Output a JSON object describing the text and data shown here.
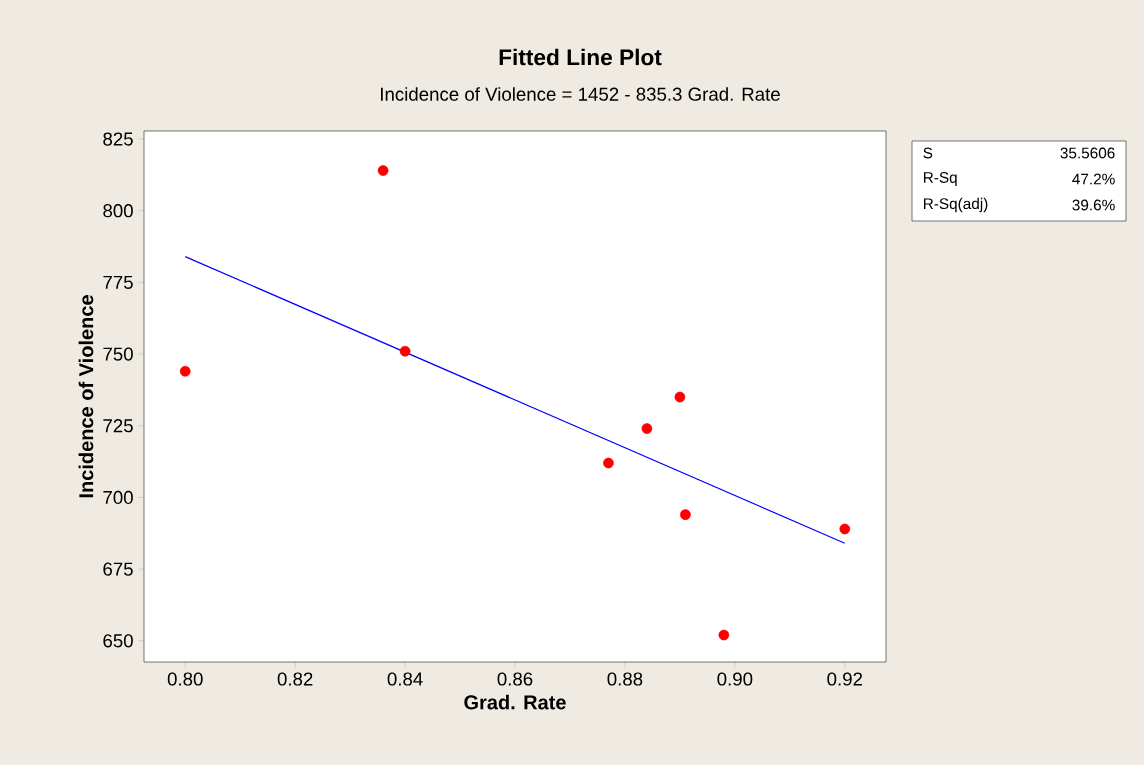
{
  "chart_data": {
    "type": "scatter",
    "title": "Fitted Line Plot",
    "subtitle": "Incidence of Violence =  1452 - 835.3 Grad. Rate",
    "xlabel": "Grad. Rate",
    "ylabel": "Incidence of Violence",
    "grid": false,
    "xlim": [
      0.7925,
      0.9275
    ],
    "ylim": [
      642.6,
      827.8
    ],
    "xticks": [
      {
        "value": 0.8,
        "label": "0.80"
      },
      {
        "value": 0.82,
        "label": "0.82"
      },
      {
        "value": 0.84,
        "label": "0.84"
      },
      {
        "value": 0.86,
        "label": "0.86"
      },
      {
        "value": 0.88,
        "label": "0.88"
      },
      {
        "value": 0.9,
        "label": "0.90"
      },
      {
        "value": 0.92,
        "label": "0.92"
      }
    ],
    "yticks": [
      650,
      675,
      700,
      725,
      750,
      775,
      800,
      825
    ],
    "series": [
      {
        "color": "#ff0000",
        "marker": "circle",
        "x": [
          0.8,
          0.836,
          0.84,
          0.877,
          0.884,
          0.89,
          0.891,
          0.898,
          0.92
        ],
        "values": [
          744,
          814,
          751,
          712,
          724,
          735,
          694,
          652,
          689
        ]
      },
      {
        "type": "line",
        "color": "#0000ff",
        "x": [
          0.8,
          0.92
        ],
        "values": [
          784,
          684
        ]
      }
    ],
    "annotations": [
      "S",
      "35.5606",
      "R-Sq",
      "47.2%",
      "R-Sq(adj)",
      "39.6%"
    ]
  }
}
